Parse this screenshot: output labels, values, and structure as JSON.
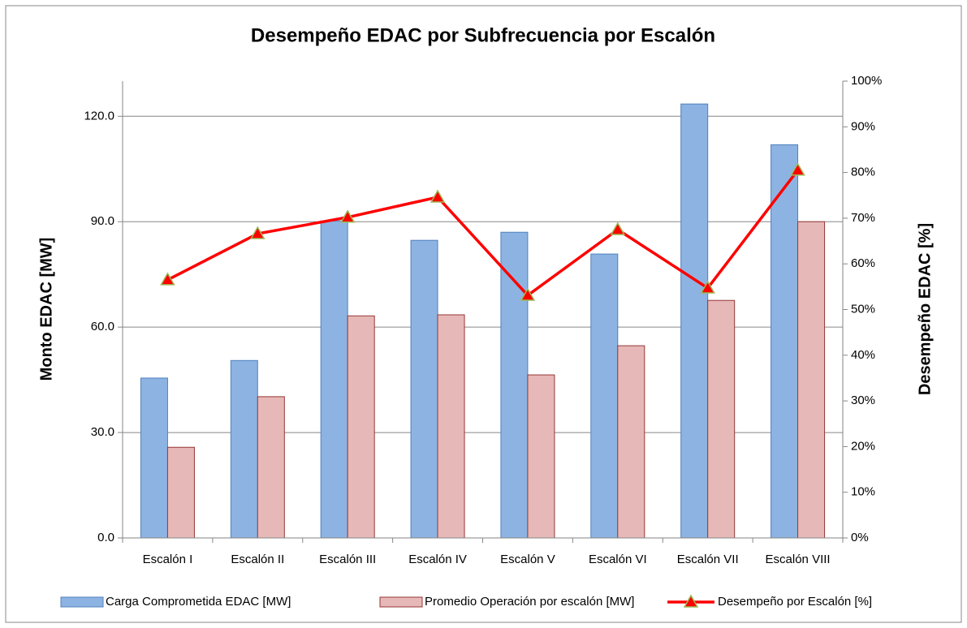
{
  "chart_data": {
    "type": "bar",
    "title": "Desempeño EDAC por Subfrecuencia por Escalón",
    "ylabel": "Monto EDAC [MW]",
    "y2label": "Desempeño EDAC [%]",
    "categories": [
      "Escalón I",
      "Escalón II",
      "Escalón III",
      "Escalón IV",
      "Escalón V",
      "Escalón VI",
      "Escalón VII",
      "Escalón VIII"
    ],
    "series": [
      {
        "name": "Carga Comprometida EDAC [MW]",
        "type": "bar",
        "color": "#8db3e2",
        "values": [
          45.5,
          50.5,
          90.2,
          84.7,
          87.0,
          80.8,
          123.5,
          111.9
        ]
      },
      {
        "name": "Promedio Operación por escalón [MW]",
        "type": "bar",
        "color": "#e6b9b8",
        "values": [
          25.8,
          40.2,
          63.2,
          63.5,
          46.4,
          54.7,
          67.6,
          90.0
        ]
      },
      {
        "name": "Desempeño por Escalón [%]",
        "type": "line",
        "axis": "y2",
        "color": "#ff0000",
        "values": [
          56.5,
          66.6,
          70.2,
          74.6,
          53.1,
          67.5,
          54.7,
          80.5
        ]
      }
    ],
    "ylim": [
      0,
      130
    ],
    "yticks": [
      {
        "value": 0,
        "label": "0.0"
      },
      {
        "value": 30,
        "label": "30.0"
      },
      {
        "value": 60,
        "label": "60.0"
      },
      {
        "value": 90,
        "label": "90.0"
      },
      {
        "value": 120,
        "label": "120.0"
      }
    ],
    "y2lim": [
      0,
      100
    ],
    "y2ticks": [
      {
        "value": 0,
        "label": "0%"
      },
      {
        "value": 10,
        "label": "10%"
      },
      {
        "value": 20,
        "label": "20%"
      },
      {
        "value": 30,
        "label": "30%"
      },
      {
        "value": 40,
        "label": "40%"
      },
      {
        "value": 50,
        "label": "50%"
      },
      {
        "value": 60,
        "label": "60%"
      },
      {
        "value": 70,
        "label": "70%"
      },
      {
        "value": 80,
        "label": "80%"
      },
      {
        "value": 90,
        "label": "90%"
      },
      {
        "value": 100,
        "label": "100%"
      }
    ],
    "grid": true,
    "legend": "bottom"
  }
}
